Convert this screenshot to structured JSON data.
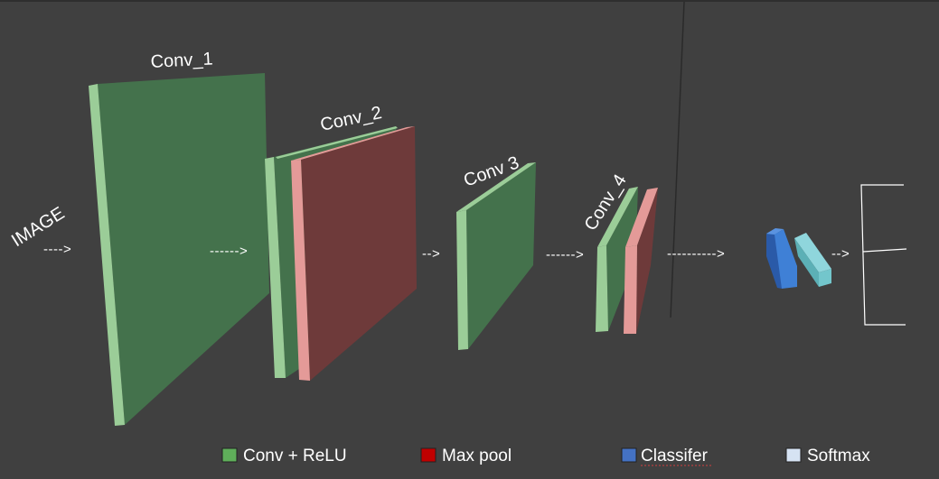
{
  "labels": {
    "image": "IMAGE",
    "conv1": "Conv_1",
    "conv2": "Conv_2",
    "conv3": "Conv  3",
    "conv4": "Conv_4"
  },
  "arrows": {
    "a1": "---->",
    "a2": "------>",
    "a3": "-->",
    "a4": "------>",
    "a5": "---------->",
    "a6": "-->"
  },
  "legend": [
    {
      "label": "Conv + ReLU",
      "color": "#5fae5a"
    },
    {
      "label": "Max pool",
      "color": "#c00000"
    },
    {
      "label": "Classifer",
      "color": "#4472c4"
    },
    {
      "label": "Softmax",
      "color": "#d6e3f3"
    }
  ],
  "colors": {
    "background": "#404040",
    "conv_face": "#44724c",
    "conv_edge": "#9bcd98",
    "pool_face": "#6e3a3a",
    "pool_edge": "#e49a98",
    "classifier": "#3f80d6",
    "softmax": "#73c6cc"
  }
}
